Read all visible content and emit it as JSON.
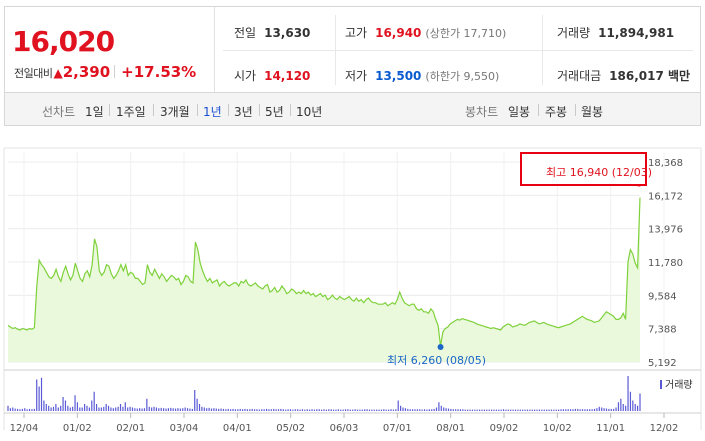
{
  "quote": {
    "price": "16,020",
    "change_label": "전일대비",
    "change_arrow": "▲",
    "change_value": "2,390",
    "change_pct": "+17.53%",
    "prev_close_label": "전일",
    "prev_close": "13,630",
    "high_label": "고가",
    "high": "16,940",
    "upper_limit_text": "(상한가 17,710)",
    "volume_label": "거래량",
    "volume": "11,894,981",
    "open_label": "시가",
    "open": "14,120",
    "low_label": "저가",
    "low": "13,500",
    "lower_limit_text": "(하한가 9,550)",
    "amount_label": "거래대금",
    "amount": "186,017 백만"
  },
  "tabs": {
    "line_label": "선차트",
    "periods": [
      "1일",
      "1주일",
      "3개월",
      "1년",
      "3년",
      "5년",
      "10년"
    ],
    "active_period": "1년",
    "candle_label": "봉차트",
    "candles": [
      "일봉",
      "주봉",
      "월봉"
    ]
  },
  "annotations": {
    "max_text": "최고 16,940 (12/03)",
    "min_text": "최저 6,260 (08/05)",
    "volume_legend": "거래량"
  },
  "colors": {
    "up": "#e0121f",
    "down": "#0a5bd0",
    "line": "#7ed13a",
    "area": "#eaf8dc",
    "volume": "#5a5ad6",
    "active_tab": "#1b4fd1"
  },
  "chart_data": {
    "type": "area",
    "title": "",
    "x_ticks": [
      "12/04",
      "01/02",
      "02/01",
      "03/04",
      "04/01",
      "05/02",
      "06/03",
      "07/01",
      "08/01",
      "09/02",
      "10/02",
      "11/01",
      "12/02"
    ],
    "y_ticks": [
      5192,
      7388,
      9584,
      11780,
      13976,
      16172,
      18368
    ],
    "ylim": [
      5192,
      18368
    ],
    "series": [
      {
        "values": [
          7600,
          7500,
          7400,
          7450,
          7350,
          7300,
          7400,
          7350,
          7300,
          7400,
          7350,
          7450,
          10200,
          11900,
          11600,
          11400,
          11100,
          10800,
          10700,
          10900,
          11300,
          10800,
          10500,
          11100,
          11500,
          11000,
          10600,
          10900,
          11700,
          11200,
          10700,
          10500,
          11000,
          11200,
          10800,
          11600,
          13300,
          12800,
          11200,
          10900,
          11100,
          11600,
          11500,
          11000,
          10700,
          10900,
          11200,
          11600,
          11200,
          11600,
          10900,
          11100,
          11000,
          10700,
          10700,
          10500,
          10300,
          10400,
          11600,
          11100,
          10900,
          11300,
          11000,
          10700,
          11000,
          10800,
          10500,
          10700,
          10900,
          10800,
          10600,
          10700,
          10300,
          10500,
          10900,
          10800,
          10500,
          10400,
          13100,
          12600,
          11700,
          11200,
          10800,
          10500,
          10700,
          10400,
          10500,
          10600,
          10200,
          10400,
          10500,
          10300,
          10200,
          10300,
          10400,
          10400,
          10200,
          10500,
          10400,
          10600,
          10300,
          10200,
          10300,
          10400,
          10200,
          10100,
          10000,
          10200,
          10300,
          9800,
          9900,
          10100,
          9800,
          9900,
          10200,
          10000,
          9700,
          9800,
          10000,
          9900,
          9700,
          9800,
          9700,
          9900,
          9700,
          9800,
          9600,
          9700,
          9500,
          9600,
          9700,
          9500,
          9600,
          9300,
          9400,
          9600,
          9400,
          9300,
          9500,
          9400,
          9300,
          9400,
          9500,
          9300,
          9200,
          9400,
          9200,
          9300,
          9100,
          9300,
          9400,
          9200,
          9100,
          9100,
          9000,
          9000,
          9000,
          9100,
          8900,
          9000,
          9100,
          9000,
          9300,
          9800,
          9400,
          9100,
          9000,
          8900,
          9000,
          9000,
          8700,
          8600,
          8700,
          8500,
          8500,
          8400,
          8700,
          8500,
          8000,
          7600,
          6260,
          7200,
          7400,
          7500,
          7700,
          7800,
          7900,
          8000,
          7950,
          8050,
          8000,
          7950,
          7900,
          7850,
          7800,
          7700,
          7650,
          7600,
          7550,
          7500,
          7450,
          7400,
          7450,
          7400,
          7350,
          7300,
          7500,
          7600,
          7700,
          7650,
          7500,
          7550,
          7600,
          7700,
          7650,
          7600,
          7700,
          7800,
          7850,
          7900,
          7800,
          7700,
          7750,
          7800,
          7700,
          7650,
          7600,
          7550,
          7500,
          7450,
          7500,
          7550,
          7600,
          7650,
          7700,
          7800,
          7900,
          8000,
          8100,
          8200,
          8100,
          8000,
          7950,
          7900,
          7800,
          7850,
          7900,
          8100,
          8300,
          8500,
          8400,
          8300,
          8200,
          8000,
          8000,
          8100,
          8400,
          8000,
          11800,
          12600,
          12300,
          11700,
          11400,
          16020
        ]
      }
    ],
    "max_point": {
      "label": "12/03",
      "value": 16940
    },
    "min_point": {
      "label": "08/05",
      "value": 6260
    },
    "volume_values": [
      0.15,
      0.08,
      0.1,
      0.07,
      0.06,
      0.05,
      0.06,
      0.08,
      0.05,
      0.06,
      0.05,
      0.06,
      0.9,
      0.7,
      0.95,
      0.3,
      0.2,
      0.15,
      0.1,
      0.12,
      0.2,
      0.1,
      0.15,
      0.4,
      0.3,
      0.15,
      0.1,
      0.12,
      0.45,
      0.25,
      0.1,
      0.1,
      0.2,
      0.15,
      0.1,
      0.3,
      0.55,
      0.2,
      0.1,
      0.1,
      0.12,
      0.2,
      0.15,
      0.1,
      0.08,
      0.1,
      0.12,
      0.2,
      0.12,
      0.25,
      0.1,
      0.12,
      0.1,
      0.08,
      0.07,
      0.08,
      0.07,
      0.08,
      0.35,
      0.12,
      0.1,
      0.12,
      0.1,
      0.08,
      0.09,
      0.08,
      0.07,
      0.08,
      0.09,
      0.08,
      0.07,
      0.08,
      0.07,
      0.08,
      0.1,
      0.08,
      0.07,
      0.06,
      0.6,
      0.35,
      0.2,
      0.12,
      0.1,
      0.08,
      0.09,
      0.07,
      0.08,
      0.07,
      0.06,
      0.07,
      0.06,
      0.05,
      0.06,
      0.05,
      0.06,
      0.05,
      0.05,
      0.06,
      0.05,
      0.06,
      0.05,
      0.05,
      0.06,
      0.05,
      0.05,
      0.04,
      0.05,
      0.05,
      0.06,
      0.05,
      0.05,
      0.06,
      0.05,
      0.05,
      0.06,
      0.05,
      0.04,
      0.05,
      0.05,
      0.04,
      0.05,
      0.05,
      0.04,
      0.05,
      0.04,
      0.05,
      0.04,
      0.05,
      0.04,
      0.05,
      0.05,
      0.04,
      0.05,
      0.04,
      0.05,
      0.05,
      0.04,
      0.04,
      0.05,
      0.04,
      0.04,
      0.05,
      0.05,
      0.04,
      0.04,
      0.05,
      0.04,
      0.04,
      0.04,
      0.05,
      0.05,
      0.04,
      0.04,
      0.04,
      0.04,
      0.04,
      0.04,
      0.05,
      0.04,
      0.04,
      0.05,
      0.04,
      0.05,
      0.3,
      0.15,
      0.1,
      0.08,
      0.06,
      0.05,
      0.05,
      0.05,
      0.05,
      0.05,
      0.04,
      0.05,
      0.04,
      0.05,
      0.05,
      0.06,
      0.1,
      0.25,
      0.15,
      0.1,
      0.08,
      0.07,
      0.06,
      0.05,
      0.05,
      0.05,
      0.05,
      0.05,
      0.04,
      0.04,
      0.04,
      0.04,
      0.04,
      0.04,
      0.04,
      0.04,
      0.04,
      0.04,
      0.04,
      0.04,
      0.04,
      0.04,
      0.04,
      0.04,
      0.05,
      0.04,
      0.04,
      0.04,
      0.04,
      0.04,
      0.04,
      0.04,
      0.04,
      0.04,
      0.04,
      0.04,
      0.04,
      0.04,
      0.04,
      0.04,
      0.04,
      0.04,
      0.04,
      0.04,
      0.04,
      0.04,
      0.04,
      0.04,
      0.05,
      0.05,
      0.05,
      0.05,
      0.05,
      0.05,
      0.06,
      0.06,
      0.05,
      0.05,
      0.05,
      0.05,
      0.05,
      0.05,
      0.06,
      0.08,
      0.12,
      0.1,
      0.08,
      0.07,
      0.06,
      0.06,
      0.06,
      0.1,
      0.25,
      0.35,
      0.2,
      0.15,
      1.0,
      0.55,
      0.3,
      0.2,
      0.15,
      0.5
    ]
  }
}
